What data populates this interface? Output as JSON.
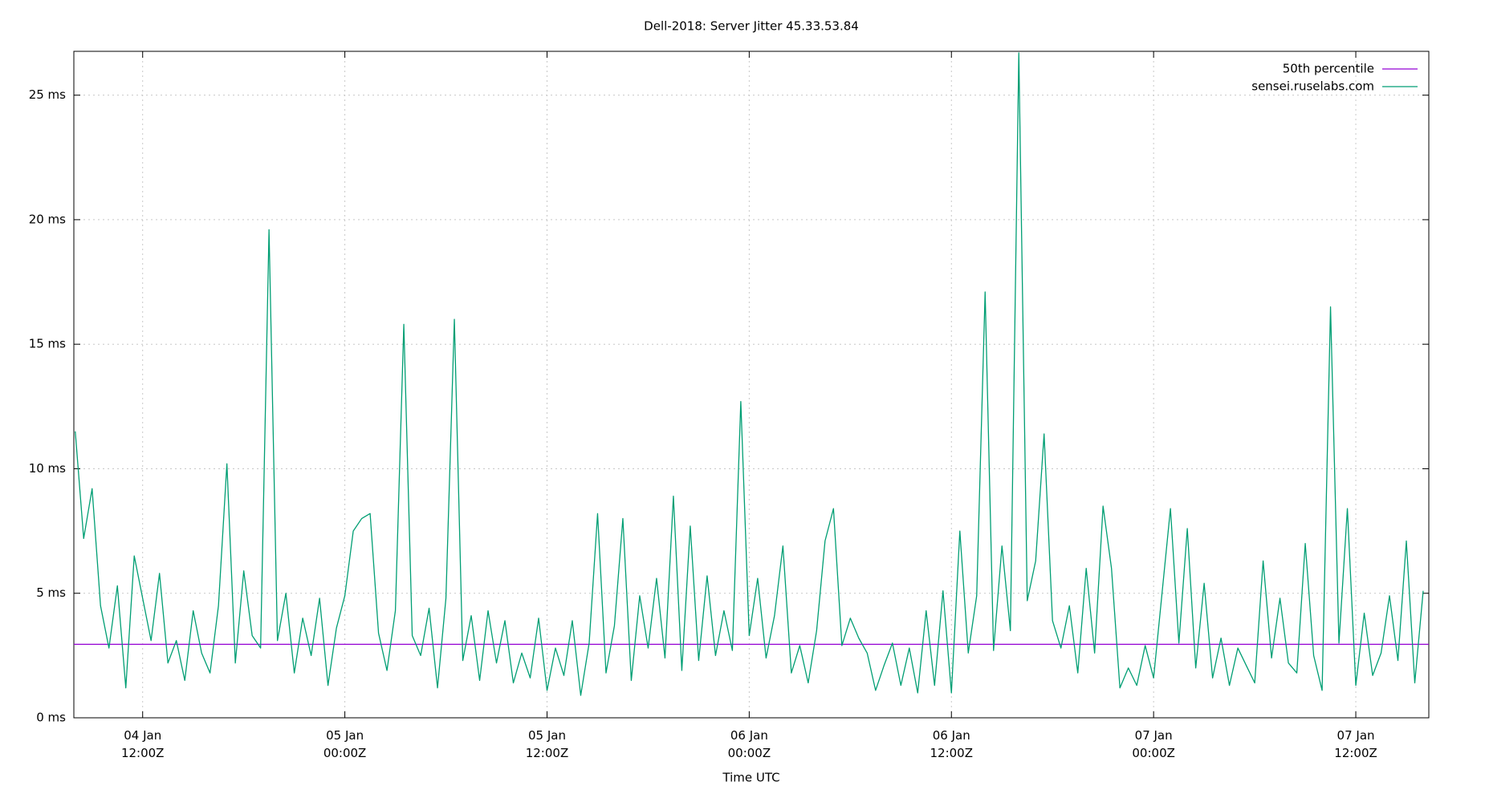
{
  "chart_data": {
    "type": "line",
    "title": "Dell-2018: Server Jitter 45.33.53.84",
    "x_label": "Time UTC",
    "x": [
      "04 Jan 08:00",
      "04 Jan 08:30",
      "04 Jan 09:00",
      "04 Jan 09:30",
      "04 Jan 10:00",
      "04 Jan 10:30",
      "04 Jan 11:00",
      "04 Jan 11:30",
      "04 Jan 12:00",
      "04 Jan 12:30",
      "04 Jan 13:00",
      "04 Jan 13:30",
      "04 Jan 14:00",
      "04 Jan 14:30",
      "04 Jan 15:00",
      "04 Jan 15:30",
      "04 Jan 16:00",
      "04 Jan 16:30",
      "04 Jan 17:00",
      "04 Jan 17:30",
      "04 Jan 18:00",
      "04 Jan 18:30",
      "04 Jan 19:00",
      "04 Jan 19:30",
      "04 Jan 20:00",
      "04 Jan 20:30",
      "04 Jan 21:00",
      "04 Jan 21:30",
      "04 Jan 22:00",
      "04 Jan 22:30",
      "04 Jan 23:00",
      "04 Jan 23:30",
      "05 Jan 00:00",
      "05 Jan 00:30",
      "05 Jan 01:00",
      "05 Jan 01:30",
      "05 Jan 02:00",
      "05 Jan 02:30",
      "05 Jan 03:00",
      "05 Jan 03:30",
      "05 Jan 04:00",
      "05 Jan 04:30",
      "05 Jan 05:00",
      "05 Jan 05:30",
      "05 Jan 06:00",
      "05 Jan 06:30",
      "05 Jan 07:00",
      "05 Jan 07:30",
      "05 Jan 08:00",
      "05 Jan 08:30",
      "05 Jan 09:00",
      "05 Jan 09:30",
      "05 Jan 10:00",
      "05 Jan 10:30",
      "05 Jan 11:00",
      "05 Jan 11:30",
      "05 Jan 12:00",
      "05 Jan 12:30",
      "05 Jan 13:00",
      "05 Jan 13:30",
      "05 Jan 14:00",
      "05 Jan 14:30",
      "05 Jan 15:00",
      "05 Jan 15:30",
      "05 Jan 16:00",
      "05 Jan 16:30",
      "05 Jan 17:00",
      "05 Jan 17:30",
      "05 Jan 18:00",
      "05 Jan 18:30",
      "05 Jan 19:00",
      "05 Jan 19:30",
      "05 Jan 20:00",
      "05 Jan 20:30",
      "05 Jan 21:00",
      "05 Jan 21:30",
      "05 Jan 22:00",
      "05 Jan 22:30",
      "05 Jan 23:00",
      "05 Jan 23:30",
      "06 Jan 00:00",
      "06 Jan 00:30",
      "06 Jan 01:00",
      "06 Jan 01:30",
      "06 Jan 02:00",
      "06 Jan 02:30",
      "06 Jan 03:00",
      "06 Jan 03:30",
      "06 Jan 04:00",
      "06 Jan 04:30",
      "06 Jan 05:00",
      "06 Jan 05:30",
      "06 Jan 06:00",
      "06 Jan 06:30",
      "06 Jan 07:00",
      "06 Jan 07:30",
      "06 Jan 08:00",
      "06 Jan 08:30",
      "06 Jan 09:00",
      "06 Jan 09:30",
      "06 Jan 10:00",
      "06 Jan 10:30",
      "06 Jan 11:00",
      "06 Jan 11:30",
      "06 Jan 12:00",
      "06 Jan 12:30",
      "06 Jan 13:00",
      "06 Jan 13:30",
      "06 Jan 14:00",
      "06 Jan 14:30",
      "06 Jan 15:00",
      "06 Jan 15:30",
      "06 Jan 16:00",
      "06 Jan 16:30",
      "06 Jan 17:00",
      "06 Jan 17:30",
      "06 Jan 18:00",
      "06 Jan 18:30",
      "06 Jan 19:00",
      "06 Jan 19:30",
      "06 Jan 20:00",
      "06 Jan 20:30",
      "06 Jan 21:00",
      "06 Jan 21:30",
      "06 Jan 22:00",
      "06 Jan 22:30",
      "06 Jan 23:00",
      "06 Jan 23:30",
      "07 Jan 00:00",
      "07 Jan 00:30",
      "07 Jan 01:00",
      "07 Jan 01:30",
      "07 Jan 02:00",
      "07 Jan 02:30",
      "07 Jan 03:00",
      "07 Jan 03:30",
      "07 Jan 04:00",
      "07 Jan 04:30",
      "07 Jan 05:00",
      "07 Jan 05:30",
      "07 Jan 06:00",
      "07 Jan 06:30",
      "07 Jan 07:00",
      "07 Jan 07:30",
      "07 Jan 08:00",
      "07 Jan 08:30",
      "07 Jan 09:00",
      "07 Jan 09:30",
      "07 Jan 10:00",
      "07 Jan 10:30",
      "07 Jan 11:00",
      "07 Jan 11:30",
      "07 Jan 12:00",
      "07 Jan 12:30",
      "07 Jan 13:00",
      "07 Jan 13:30",
      "07 Jan 14:00",
      "07 Jan 14:30",
      "07 Jan 15:00",
      "07 Jan 15:30",
      "07 Jan 16:00"
    ],
    "series": [
      {
        "name": "sensei.ruselabs.com",
        "color": "#009e73",
        "values": [
          11.5,
          7.2,
          9.2,
          4.5,
          2.8,
          5.3,
          1.2,
          6.5,
          4.8,
          3.1,
          5.8,
          2.2,
          3.1,
          1.5,
          4.3,
          2.6,
          1.8,
          4.5,
          10.2,
          2.2,
          5.9,
          3.3,
          2.8,
          19.6,
          3.1,
          5.0,
          1.8,
          4.0,
          2.5,
          4.8,
          1.3,
          3.6,
          4.9,
          7.5,
          8.0,
          8.2,
          3.4,
          1.9,
          4.3,
          15.8,
          3.3,
          2.5,
          4.4,
          1.2,
          4.8,
          16.0,
          2.3,
          4.1,
          1.5,
          4.3,
          2.2,
          3.9,
          1.4,
          2.6,
          1.6,
          4.0,
          1.1,
          2.8,
          1.7,
          3.9,
          0.9,
          3.0,
          8.2,
          1.8,
          3.7,
          8.0,
          1.5,
          4.9,
          2.8,
          5.6,
          2.4,
          8.9,
          1.9,
          7.7,
          2.3,
          5.7,
          2.5,
          4.3,
          2.7,
          12.7,
          3.3,
          5.6,
          2.4,
          4.1,
          6.9,
          1.8,
          2.9,
          1.4,
          3.5,
          7.1,
          8.4,
          2.9,
          4.0,
          3.2,
          2.6,
          1.1,
          2.1,
          3.0,
          1.3,
          2.8,
          1.0,
          4.3,
          1.3,
          5.1,
          1.0,
          7.5,
          2.6,
          4.9,
          17.1,
          2.7,
          6.9,
          3.5,
          26.7,
          4.7,
          6.3,
          11.4,
          3.9,
          2.8,
          4.5,
          1.8,
          6.0,
          2.6,
          8.5,
          6.0,
          1.2,
          2.0,
          1.3,
          2.9,
          1.6,
          5.0,
          8.4,
          3.0,
          7.6,
          2.0,
          5.4,
          1.6,
          3.2,
          1.3,
          2.8,
          2.1,
          1.4,
          6.3,
          2.4,
          4.8,
          2.2,
          1.8,
          7.0,
          2.5,
          1.1,
          16.5,
          3.0,
          8.4,
          1.3,
          4.2,
          1.7,
          2.6,
          4.9,
          2.3,
          7.1,
          1.4,
          5.1
        ]
      }
    ],
    "reference_lines": [
      {
        "name": "50th percentile",
        "value": 2.95,
        "color": "#9400d3"
      }
    ],
    "xlim": [
      "04 Jan 07:55",
      "07 Jan 16:20"
    ],
    "xticks": [
      {
        "value": "04 Jan 12:00",
        "label": "04 Jan\n12:00Z"
      },
      {
        "value": "05 Jan 00:00",
        "label": "05 Jan\n00:00Z"
      },
      {
        "value": "05 Jan 12:00",
        "label": "05 Jan\n12:00Z"
      },
      {
        "value": "06 Jan 00:00",
        "label": "06 Jan\n00:00Z"
      },
      {
        "value": "06 Jan 12:00",
        "label": "06 Jan\n12:00Z"
      },
      {
        "value": "07 Jan 00:00",
        "label": "07 Jan\n00:00Z"
      },
      {
        "value": "07 Jan 12:00",
        "label": "07 Jan\n12:00Z"
      }
    ],
    "ylim": [
      0,
      26.76
    ],
    "yticks": [
      {
        "value": 0,
        "label": "0 ms"
      },
      {
        "value": 5,
        "label": "5 ms"
      },
      {
        "value": 10,
        "label": "10 ms"
      },
      {
        "value": 15,
        "label": "15 ms"
      },
      {
        "value": 20,
        "label": "20 ms"
      },
      {
        "value": 25,
        "label": "25 ms"
      }
    ],
    "grid": true,
    "legend": "top-right"
  }
}
